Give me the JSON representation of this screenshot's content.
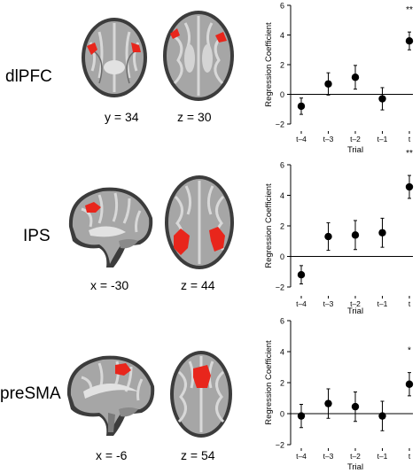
{
  "panels": [
    {
      "region": "dlPFC",
      "coord_left": "y = 34",
      "coord_right": "z = 30",
      "view_left": "coronal-slice",
      "view_right": "axial-slice"
    },
    {
      "region": "IPS",
      "coord_left": "x = -30",
      "coord_right": "z = 44",
      "view_left": "sagittal-slice",
      "view_right": "axial-slice"
    },
    {
      "region": "preSMA",
      "coord_left": "x = -6",
      "coord_right": "z = 54",
      "view_left": "sagittal-slice",
      "view_right": "axial-slice"
    }
  ],
  "colors": {
    "activation": "#e8261c",
    "brain_gray": "#9a9a9a",
    "marker": "#000000"
  },
  "chart_data": [
    {
      "type": "scatter",
      "categories": [
        "t–4",
        "t–3",
        "t–2",
        "t–1",
        "t"
      ],
      "values": [
        -0.8,
        0.7,
        1.15,
        -0.3,
        3.6
      ],
      "error": [
        0.55,
        0.75,
        0.8,
        0.75,
        0.6
      ],
      "ylabel": "Regression Coefficient",
      "xlabel": "Trial",
      "ylim": [
        -2,
        6
      ],
      "yticks": [
        "−2",
        "0",
        "2",
        "4",
        "6"
      ],
      "significance": [
        "",
        "",
        "",
        "",
        "**"
      ],
      "baseline": 0
    },
    {
      "type": "scatter",
      "categories": [
        "t–4",
        "t–3",
        "t–2",
        "t–1",
        "t"
      ],
      "values": [
        -1.2,
        1.3,
        1.4,
        1.55,
        4.55
      ],
      "error": [
        0.6,
        0.9,
        0.95,
        0.95,
        0.75
      ],
      "ylabel": "Regression Coefficient",
      "xlabel": "Trial",
      "ylim": [
        -2,
        6
      ],
      "yticks": [
        "−2",
        "0",
        "2",
        "4",
        "6"
      ],
      "significance": [
        "",
        "",
        "",
        "",
        "**"
      ],
      "baseline": 0
    },
    {
      "type": "scatter",
      "categories": [
        "t–4",
        "t–3",
        "t–2",
        "t–1",
        "t"
      ],
      "values": [
        -0.15,
        0.65,
        0.45,
        -0.15,
        1.9
      ],
      "error": [
        0.75,
        0.95,
        0.95,
        0.95,
        0.75
      ],
      "ylabel": "Regression Coefficient",
      "xlabel": "Trial",
      "ylim": [
        -2,
        6
      ],
      "yticks": [
        "−2",
        "0",
        "2",
        "4",
        "6"
      ],
      "significance": [
        "",
        "",
        "",
        "",
        "*"
      ],
      "baseline": 0
    }
  ]
}
